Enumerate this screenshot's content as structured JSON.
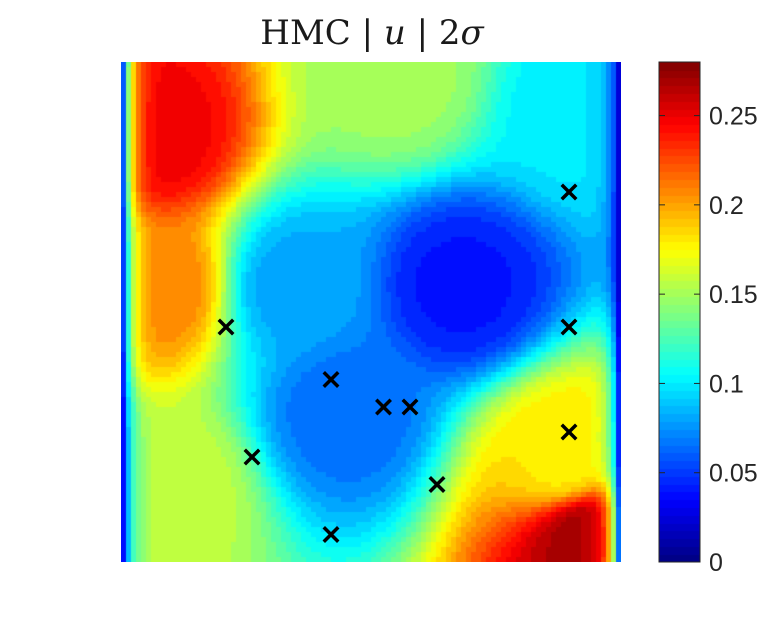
{
  "chart_data": {
    "type": "heatmap",
    "title": "HMC | u | 2σ",
    "title_parts": {
      "method": "HMC",
      "sep1": " | ",
      "var": "u",
      "sep2": " | ",
      "num": "2",
      "sym": "σ"
    },
    "colormap": "jet",
    "colorbar": {
      "range": [
        0,
        0.28
      ],
      "ticks": [
        0,
        0.05,
        0.1,
        0.15,
        0.2,
        0.25
      ],
      "tick_labels": [
        "0",
        "0.05",
        "0.1",
        "0.15",
        "0.2",
        "0.25"
      ]
    },
    "domain": {
      "x": [
        0,
        1
      ],
      "y": [
        0,
        1
      ]
    },
    "field_anchors": [
      {
        "x": 0.06,
        "y": 0.85,
        "value": 0.25
      },
      {
        "x": 0.07,
        "y": 0.55,
        "value": 0.21
      },
      {
        "x": 0.09,
        "y": 0.15,
        "value": 0.16
      },
      {
        "x": 0.55,
        "y": 0.97,
        "value": 0.15
      },
      {
        "x": 0.68,
        "y": 0.55,
        "value": 0.04
      },
      {
        "x": 0.45,
        "y": 0.3,
        "value": 0.065
      },
      {
        "x": 0.35,
        "y": 0.55,
        "value": 0.08
      },
      {
        "x": 0.93,
        "y": 0.05,
        "value": 0.27
      },
      {
        "x": 0.88,
        "y": 0.2,
        "value": 0.18
      },
      {
        "x": 0.92,
        "y": 0.9,
        "value": 0.1
      }
    ],
    "markers": {
      "symbol": "x",
      "color": "#000000",
      "points": [
        {
          "x": 0.896,
          "y": 0.74
        },
        {
          "x": 0.21,
          "y": 0.47
        },
        {
          "x": 0.896,
          "y": 0.47
        },
        {
          "x": 0.42,
          "y": 0.365
        },
        {
          "x": 0.525,
          "y": 0.31
        },
        {
          "x": 0.578,
          "y": 0.31
        },
        {
          "x": 0.896,
          "y": 0.26
        },
        {
          "x": 0.262,
          "y": 0.21
        },
        {
          "x": 0.632,
          "y": 0.155
        },
        {
          "x": 0.42,
          "y": 0.055
        }
      ]
    }
  }
}
